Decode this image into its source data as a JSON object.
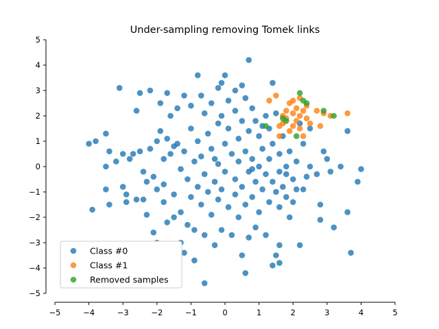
{
  "chart_data": {
    "type": "scatter",
    "title": "Under-sampling removing Tomek links",
    "xlabel": "",
    "ylabel": "",
    "xlim": [
      -5,
      5
    ],
    "ylim": [
      -5,
      5
    ],
    "xticks": [
      "−5",
      "−4",
      "−3",
      "−2",
      "−1",
      "0",
      "1",
      "2",
      "3",
      "4",
      "5"
    ],
    "yticks": [
      "−5",
      "−4",
      "−3",
      "−2",
      "−1",
      "0",
      "1",
      "2",
      "3",
      "4",
      "5"
    ],
    "grid": false,
    "legend_position": "lower-left",
    "series": [
      {
        "name": "Class #0",
        "color": "#1f77b4",
        "points": [
          [
            -4.0,
            0.9
          ],
          [
            -3.8,
            1.0
          ],
          [
            -3.9,
            -1.7
          ],
          [
            -3.5,
            1.3
          ],
          [
            -3.5,
            0.0
          ],
          [
            -3.4,
            0.6
          ],
          [
            -3.4,
            -1.5
          ],
          [
            -3.1,
            3.1
          ],
          [
            -3.2,
            0.2
          ],
          [
            -3.0,
            0.5
          ],
          [
            -3.0,
            -0.8
          ],
          [
            -2.9,
            -1.1
          ],
          [
            -2.9,
            -1.4
          ],
          [
            -2.8,
            0.3
          ],
          [
            -2.7,
            0.5
          ],
          [
            -2.6,
            2.2
          ],
          [
            -2.5,
            2.9
          ],
          [
            -2.5,
            0.6
          ],
          [
            -2.4,
            -0.2
          ],
          [
            -2.4,
            -1.3
          ],
          [
            -2.3,
            -1.9
          ],
          [
            -2.2,
            3.0
          ],
          [
            -2.2,
            0.7
          ],
          [
            -2.1,
            -0.4
          ],
          [
            -2.1,
            -2.6
          ],
          [
            -2.0,
            1.0
          ],
          [
            -2.0,
            -0.9
          ],
          [
            -2.0,
            -3.0
          ],
          [
            -1.9,
            2.5
          ],
          [
            -1.9,
            1.4
          ],
          [
            -1.8,
            0.3
          ],
          [
            -1.8,
            -0.7
          ],
          [
            -1.7,
            2.9
          ],
          [
            -1.7,
            1.1
          ],
          [
            -1.7,
            -2.2
          ],
          [
            -1.6,
            2.0
          ],
          [
            -1.6,
            0.5
          ],
          [
            -1.5,
            -1.1
          ],
          [
            -1.5,
            -2.0
          ],
          [
            -1.4,
            2.3
          ],
          [
            -1.4,
            0.9
          ],
          [
            -1.3,
            -0.1
          ],
          [
            -1.3,
            -1.8
          ],
          [
            -1.3,
            -3.0
          ],
          [
            -1.2,
            2.8
          ],
          [
            -1.2,
            0.6
          ],
          [
            -1.1,
            -0.5
          ],
          [
            -1.1,
            -2.3
          ],
          [
            -1.0,
            2.4
          ],
          [
            -1.0,
            1.5
          ],
          [
            -1.0,
            -1.2
          ],
          [
            -0.9,
            0.2
          ],
          [
            -0.9,
            -2.5
          ],
          [
            -0.8,
            3.6
          ],
          [
            -0.8,
            1.0
          ],
          [
            -0.8,
            -0.8
          ],
          [
            -0.7,
            2.8
          ],
          [
            -0.7,
            0.4
          ],
          [
            -0.7,
            -1.5
          ],
          [
            -0.6,
            2.1
          ],
          [
            -0.6,
            -0.3
          ],
          [
            -0.6,
            -2.7
          ],
          [
            -0.5,
            1.3
          ],
          [
            -0.5,
            -1.0
          ],
          [
            -0.4,
            2.5
          ],
          [
            -0.4,
            0.7
          ],
          [
            -0.4,
            -1.9
          ],
          [
            -0.3,
            -0.6
          ],
          [
            -0.3,
            -3.1
          ],
          [
            -0.2,
            1.7
          ],
          [
            -0.2,
            0.1
          ],
          [
            -0.2,
            -1.3
          ],
          [
            -0.1,
            3.3
          ],
          [
            -0.1,
            2.0
          ],
          [
            -0.1,
            -0.9
          ],
          [
            -0.1,
            -2.5
          ],
          [
            0.0,
            3.6
          ],
          [
            0.0,
            0.9
          ],
          [
            0.0,
            -0.2
          ],
          [
            0.1,
            2.6
          ],
          [
            0.1,
            1.5
          ],
          [
            0.1,
            -1.6
          ],
          [
            0.2,
            0.5
          ],
          [
            0.2,
            -2.7
          ],
          [
            0.3,
            2.2
          ],
          [
            0.3,
            -0.5
          ],
          [
            0.3,
            -1.1
          ],
          [
            0.4,
            1.1
          ],
          [
            0.4,
            0.2
          ],
          [
            0.4,
            -2.0
          ],
          [
            0.5,
            3.2
          ],
          [
            0.5,
            1.8
          ],
          [
            0.5,
            -0.8
          ],
          [
            0.6,
            2.7
          ],
          [
            0.6,
            0.6
          ],
          [
            0.6,
            -1.5
          ],
          [
            0.7,
            4.2
          ],
          [
            0.7,
            1.4
          ],
          [
            0.7,
            -0.2
          ],
          [
            0.7,
            -2.8
          ],
          [
            0.8,
            2.3
          ],
          [
            0.8,
            0.3
          ],
          [
            0.8,
            -1.2
          ],
          [
            0.9,
            1.8
          ],
          [
            0.9,
            -0.6
          ],
          [
            0.9,
            -2.4
          ],
          [
            1.0,
            1.2
          ],
          [
            1.0,
            0.0
          ],
          [
            1.0,
            -1.8
          ],
          [
            1.1,
            0.7
          ],
          [
            1.1,
            -0.9
          ],
          [
            1.2,
            2.0
          ],
          [
            1.2,
            -0.3
          ],
          [
            1.2,
            -2.7
          ],
          [
            1.3,
            1.5
          ],
          [
            1.3,
            0.3
          ],
          [
            1.3,
            -1.4
          ],
          [
            1.4,
            3.3
          ],
          [
            1.4,
            0.9
          ],
          [
            1.4,
            -0.6
          ],
          [
            1.5,
            -1.0
          ],
          [
            1.5,
            -3.5
          ],
          [
            1.6,
            0.5
          ],
          [
            1.6,
            -0.2
          ],
          [
            1.6,
            -1.6
          ],
          [
            1.7,
            1.2
          ],
          [
            1.7,
            -0.8
          ],
          [
            1.8,
            0.0
          ],
          [
            1.8,
            -1.2
          ],
          [
            1.9,
            0.6
          ],
          [
            1.9,
            -2.0
          ],
          [
            2.0,
            -0.5
          ],
          [
            2.0,
            -1.4
          ],
          [
            2.1,
            0.2
          ],
          [
            2.1,
            -0.9
          ],
          [
            2.2,
            1.7
          ],
          [
            2.2,
            -3.1
          ],
          [
            2.3,
            0.9
          ],
          [
            2.4,
            -0.4
          ],
          [
            2.5,
            1.5
          ],
          [
            2.5,
            0.0
          ],
          [
            2.7,
            -0.3
          ],
          [
            2.8,
            -1.5
          ],
          [
            2.8,
            -2.1
          ],
          [
            2.9,
            0.6
          ],
          [
            3.1,
            -0.2
          ],
          [
            3.2,
            -2.4
          ],
          [
            3.4,
            0.0
          ],
          [
            3.6,
            1.4
          ],
          [
            3.6,
            -1.8
          ],
          [
            3.7,
            -3.4
          ],
          [
            3.9,
            -0.6
          ],
          [
            4.0,
            -0.1
          ],
          [
            -0.6,
            -4.6
          ],
          [
            0.5,
            -3.5
          ],
          [
            0.6,
            -4.2
          ],
          [
            1.4,
            -3.9
          ],
          [
            1.6,
            -3.8
          ],
          [
            1.6,
            -3.1
          ],
          [
            -0.9,
            -3.7
          ],
          [
            -1.2,
            -3.4
          ],
          [
            -0.2,
            3.1
          ],
          [
            0.3,
            3.0
          ],
          [
            1.5,
            2.1
          ],
          [
            1.8,
            -0.3
          ],
          [
            -2.3,
            -0.6
          ],
          [
            -1.5,
            0.8
          ],
          [
            -0.3,
            0.3
          ],
          [
            0.8,
            -0.1
          ],
          [
            1.1,
            1.6
          ],
          [
            -2.6,
            -1.3
          ],
          [
            -3.5,
            -0.9
          ],
          [
            -1.8,
            -1.4
          ],
          [
            2.3,
            -0.9
          ],
          [
            3.0,
            0.3
          ]
        ]
      },
      {
        "name": "Class #1",
        "color": "#ff7f0e",
        "points": [
          [
            1.3,
            2.6
          ],
          [
            1.5,
            2.8
          ],
          [
            1.6,
            1.6
          ],
          [
            1.6,
            1.2
          ],
          [
            1.7,
            1.7
          ],
          [
            1.8,
            2.2
          ],
          [
            1.8,
            1.9
          ],
          [
            1.9,
            1.4
          ],
          [
            1.9,
            2.5
          ],
          [
            2.0,
            2.1
          ],
          [
            2.0,
            1.6
          ],
          [
            2.1,
            2.3
          ],
          [
            2.1,
            1.8
          ],
          [
            2.2,
            2.7
          ],
          [
            2.2,
            2.0
          ],
          [
            2.2,
            1.5
          ],
          [
            2.3,
            2.2
          ],
          [
            2.3,
            1.2
          ],
          [
            2.4,
            1.9
          ],
          [
            2.4,
            2.4
          ],
          [
            2.5,
            1.7
          ],
          [
            2.7,
            2.2
          ],
          [
            2.8,
            1.6
          ],
          [
            2.9,
            2.1
          ],
          [
            3.1,
            2.0
          ],
          [
            3.6,
            2.1
          ],
          [
            1.7,
            2.0
          ],
          [
            2.0,
            2.6
          ]
        ]
      },
      {
        "name": "Removed samples",
        "color": "#2ca02c",
        "points": [
          [
            1.2,
            1.6
          ],
          [
            1.7,
            1.9
          ],
          [
            1.8,
            1.8
          ],
          [
            2.1,
            1.2
          ],
          [
            2.2,
            2.9
          ],
          [
            2.3,
            2.6
          ],
          [
            2.4,
            2.5
          ],
          [
            2.9,
            2.2
          ],
          [
            3.2,
            2.0
          ]
        ]
      }
    ]
  }
}
